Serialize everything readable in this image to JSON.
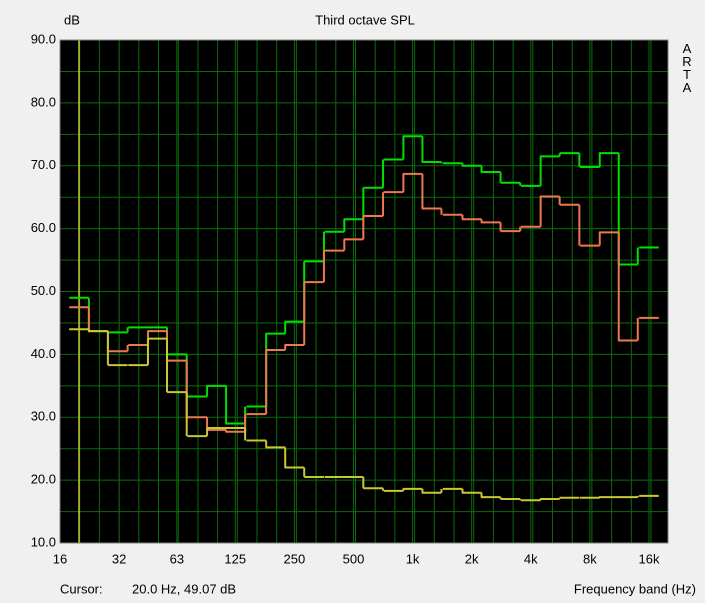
{
  "chart_data": {
    "type": "step",
    "title": "Third octave SPL",
    "y_label": "dB",
    "x_label": "Frequency band (Hz)",
    "side_label": "ARTA",
    "cursor_label": "Cursor:",
    "cursor_text": "20.0 Hz, 49.07 dB",
    "cursor_x": 20,
    "cursor_color": "#c8c832",
    "x_scale": "log",
    "grid": true,
    "xlim": [
      16,
      20000
    ],
    "ylim": [
      10,
      90
    ],
    "xticks": [
      16,
      32,
      63,
      125,
      250,
      500,
      {
        "value": 1000,
        "label": "1k"
      },
      {
        "value": 2000,
        "label": "2k"
      },
      {
        "value": 4000,
        "label": "4k"
      },
      {
        "value": 8000,
        "label": "8k"
      },
      {
        "value": 16000,
        "label": "16k"
      }
    ],
    "yticks": [
      {
        "value": 10,
        "label": "10.0"
      },
      {
        "value": 20,
        "label": "20.0"
      },
      {
        "value": 30,
        "label": "30.0"
      },
      {
        "value": 40,
        "label": "40.0"
      },
      {
        "value": 50,
        "label": "50.0"
      },
      {
        "value": 60,
        "label": "60.0"
      },
      {
        "value": 70,
        "label": "70.0"
      },
      {
        "value": 80,
        "label": "80.0"
      },
      {
        "value": 90,
        "label": "90.0"
      }
    ],
    "x": [
      20,
      25,
      31.5,
      40,
      50,
      63,
      80,
      100,
      125,
      160,
      200,
      250,
      315,
      400,
      500,
      630,
      800,
      1000,
      1250,
      1600,
      2000,
      2500,
      3150,
      4000,
      5000,
      6300,
      8000,
      10000,
      12500,
      16000
    ],
    "series": [
      {
        "color": "#00e000",
        "values": [
          49,
          43.7,
          43.5,
          44.3,
          44.3,
          40,
          33.3,
          35,
          29,
          31.7,
          43.3,
          45.2,
          54.8,
          59.5,
          61.5,
          66.5,
          71,
          74.7,
          70.6,
          70.4,
          70,
          69,
          67.3,
          66.8,
          71.5,
          72,
          69.8,
          72,
          54.3,
          57
        ]
      },
      {
        "color": "#f07850",
        "values": [
          47.5,
          43.7,
          40.5,
          41.5,
          43.7,
          39,
          30,
          28,
          27.7,
          30.5,
          40.7,
          41.5,
          51.5,
          56.5,
          58.3,
          62,
          65.8,
          68.7,
          63.2,
          62.2,
          61.5,
          61,
          59.6,
          60.3,
          65.1,
          63.8,
          57.3,
          59.4,
          42.2,
          45.8
        ]
      },
      {
        "color": "#c8c832",
        "values": [
          44,
          43.7,
          38.3,
          38.3,
          42.5,
          34,
          27,
          28.3,
          28.3,
          26.3,
          25.2,
          22,
          20.5,
          20.5,
          20.5,
          18.7,
          18.3,
          18.6,
          18,
          18.6,
          18,
          17.3,
          17,
          16.8,
          17,
          17.2,
          17.2,
          17.3,
          17.3,
          17.5
        ]
      }
    ]
  }
}
